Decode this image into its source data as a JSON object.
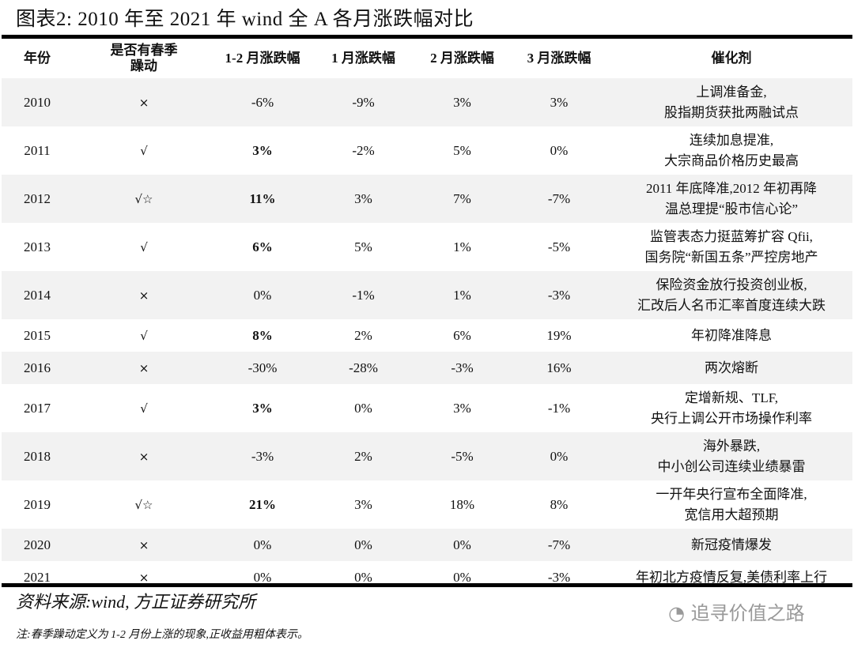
{
  "title": "图表2:  2010 年至 2021 年 wind 全 A 各月涨跌幅对比",
  "headers": [
    "年份",
    "是否有春季躁动",
    "1-2 月涨跌幅",
    "1 月涨跌幅",
    "2 月涨跌幅",
    "3 月涨跌幅",
    "催化剂"
  ],
  "rows": [
    {
      "year": "2010",
      "spring": "×",
      "m12": "-6%",
      "bold": false,
      "m1": "-9%",
      "m2": "3%",
      "m3": "3%",
      "c1": "上调准备金,",
      "c2": "股指期货获批两融试点"
    },
    {
      "year": "2011",
      "spring": "√",
      "m12": "3%",
      "bold": true,
      "m1": "-2%",
      "m2": "5%",
      "m3": "0%",
      "c1": "连续加息提准,",
      "c2": "大宗商品价格历史最高"
    },
    {
      "year": "2012",
      "spring": "√☆",
      "m12": "11%",
      "bold": true,
      "m1": "3%",
      "m2": "7%",
      "m3": "-7%",
      "c1": "2011 年底降准,2012 年初再降",
      "c2": "温总理提“股市信心论”"
    },
    {
      "year": "2013",
      "spring": "√",
      "m12": "6%",
      "bold": true,
      "m1": "5%",
      "m2": "1%",
      "m3": "-5%",
      "c1": "监管表态力挺蓝筹扩容 Qfii,",
      "c2": "国务院“新国五条”严控房地产"
    },
    {
      "year": "2014",
      "spring": "×",
      "m12": "0%",
      "bold": false,
      "m1": "-1%",
      "m2": "1%",
      "m3": "-3%",
      "c1": "保险资金放行投资创业板,",
      "c2": "汇改后人名币汇率首度连续大跌"
    },
    {
      "year": "2015",
      "spring": "√",
      "m12": "8%",
      "bold": true,
      "m1": "2%",
      "m2": "6%",
      "m3": "19%",
      "c1": "年初降准降息",
      "c2": ""
    },
    {
      "year": "2016",
      "spring": "×",
      "m12": "-30%",
      "bold": false,
      "m1": "-28%",
      "m2": "-3%",
      "m3": "16%",
      "c1": "两次熔断",
      "c2": ""
    },
    {
      "year": "2017",
      "spring": "√",
      "m12": "3%",
      "bold": true,
      "m1": "0%",
      "m2": "3%",
      "m3": "-1%",
      "c1": "定增新规、TLF,",
      "c2": "央行上调公开市场操作利率"
    },
    {
      "year": "2018",
      "spring": "×",
      "m12": "-3%",
      "bold": false,
      "m1": "2%",
      "m2": "-5%",
      "m3": "0%",
      "c1": "海外暴跌,",
      "c2": "中小创公司连续业绩暴雷"
    },
    {
      "year": "2019",
      "spring": "√☆",
      "m12": "21%",
      "bold": true,
      "m1": "3%",
      "m2": "18%",
      "m3": "8%",
      "c1": "一开年央行宣布全面降准,",
      "c2": "宽信用大超预期"
    },
    {
      "year": "2020",
      "spring": "×",
      "m12": "0%",
      "bold": false,
      "m1": "0%",
      "m2": "0%",
      "m3": "-7%",
      "c1": "新冠疫情爆发",
      "c2": ""
    },
    {
      "year": "2021",
      "spring": "×",
      "m12": "0%",
      "bold": false,
      "m1": "0%",
      "m2": "0%",
      "m3": "-3%",
      "c1": "年初北方疫情反复,美债利率上行",
      "c2": ""
    }
  ],
  "source": "资料来源:wind, 方正证券研究所",
  "watermark": "追寻价值之路",
  "note": "注:春季躁动定义为 1-2 月份上涨的现象,正收益用粗体表示。"
}
